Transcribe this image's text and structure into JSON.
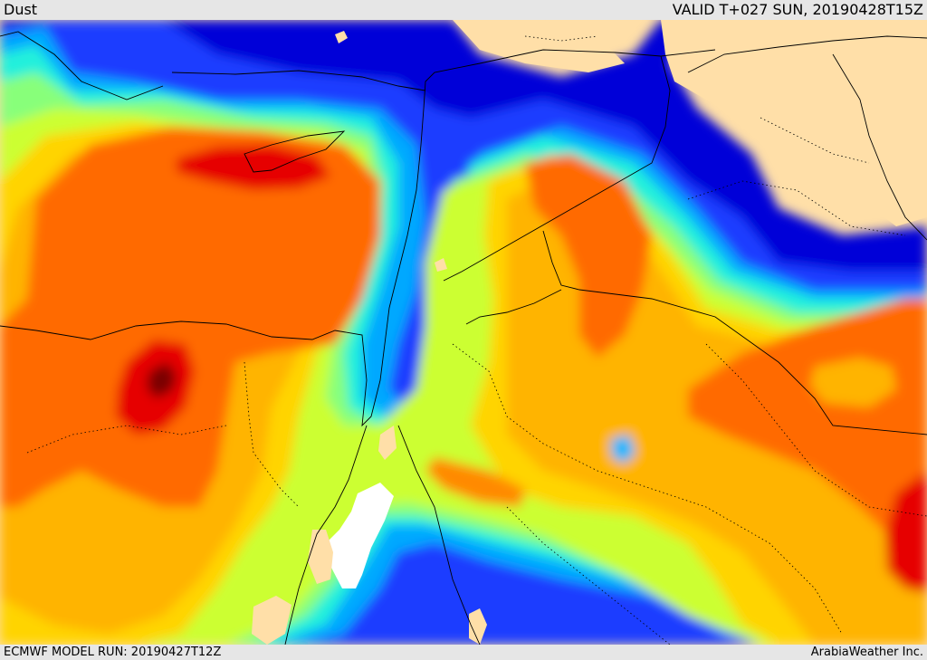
{
  "header": {
    "title": "Dust",
    "valid": "VALID T+027 SUN, 20190428T15Z"
  },
  "footer": {
    "model_run": "ECMWF MODEL RUN: 20190427T12Z",
    "credit": "ArabiaWeather Inc."
  },
  "map": {
    "variable": "dust",
    "color_scale": [
      "#ffffff",
      "#ffdfa8",
      "#0000cc",
      "#0033ff",
      "#0077ff",
      "#00b7ff",
      "#22f0e0",
      "#88ff88",
      "#ccff33",
      "#ffd400",
      "#ffb000",
      "#ff6a00",
      "#e60000",
      "#7a0000"
    ]
  }
}
